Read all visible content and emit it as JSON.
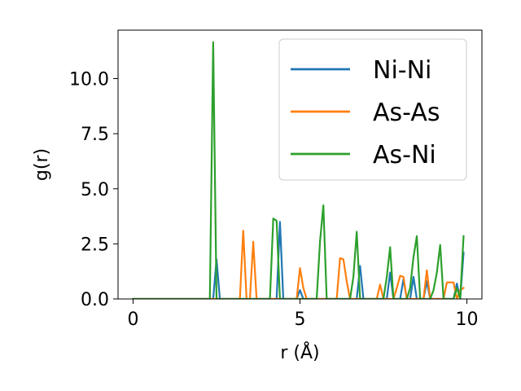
{
  "chart_data": {
    "type": "line",
    "xlabel": "r (Å)",
    "ylabel": "g(r)",
    "xlim": [
      -0.45,
      10.45
    ],
    "ylim": [
      0.0,
      12.2
    ],
    "xticks": [
      0,
      5,
      10
    ],
    "xtick_labels": [
      "0",
      "5",
      "10"
    ],
    "yticks": [
      0.0,
      2.5,
      5.0,
      7.5,
      10.0
    ],
    "ytick_labels": [
      "0.0",
      "2.5",
      "5.0",
      "7.5",
      "10.0"
    ],
    "grid": false,
    "legend_position": "top-right",
    "series": [
      {
        "name": "Ni-Ni",
        "color": "#1f77b4",
        "points": [
          [
            0.0,
            0
          ],
          [
            2.4,
            0
          ],
          [
            2.5,
            1.8
          ],
          [
            2.6,
            0
          ],
          [
            4.3,
            0
          ],
          [
            4.4,
            3.5
          ],
          [
            4.5,
            0
          ],
          [
            4.9,
            0
          ],
          [
            5.0,
            0.4
          ],
          [
            5.1,
            0
          ],
          [
            6.7,
            0
          ],
          [
            6.8,
            1.5
          ],
          [
            6.9,
            0
          ],
          [
            7.6,
            0
          ],
          [
            7.7,
            1.2
          ],
          [
            7.8,
            0
          ],
          [
            8.0,
            0
          ],
          [
            8.1,
            0.9
          ],
          [
            8.2,
            0
          ],
          [
            8.3,
            0
          ],
          [
            8.4,
            1.0
          ],
          [
            8.5,
            0
          ],
          [
            8.7,
            0
          ],
          [
            8.8,
            0.8
          ],
          [
            8.9,
            0
          ],
          [
            9.6,
            0
          ],
          [
            9.7,
            0.7
          ],
          [
            9.8,
            0
          ],
          [
            9.9,
            2.1
          ]
        ]
      },
      {
        "name": "As-As",
        "color": "#ff7f0e",
        "points": [
          [
            0.0,
            0
          ],
          [
            3.2,
            0
          ],
          [
            3.3,
            3.1
          ],
          [
            3.4,
            0
          ],
          [
            3.5,
            0
          ],
          [
            3.6,
            2.6
          ],
          [
            3.7,
            0
          ],
          [
            4.9,
            0
          ],
          [
            5.0,
            1.4
          ],
          [
            5.1,
            0.5
          ],
          [
            5.2,
            0
          ],
          [
            6.1,
            0
          ],
          [
            6.2,
            1.85
          ],
          [
            6.3,
            1.8
          ],
          [
            6.4,
            0.8
          ],
          [
            6.5,
            0
          ],
          [
            7.3,
            0
          ],
          [
            7.4,
            0.65
          ],
          [
            7.5,
            0
          ],
          [
            7.8,
            0
          ],
          [
            7.9,
            0.5
          ],
          [
            8.0,
            1.05
          ],
          [
            8.1,
            1.0
          ],
          [
            8.2,
            0
          ],
          [
            8.7,
            0
          ],
          [
            8.8,
            1.3
          ],
          [
            8.9,
            0
          ],
          [
            9.3,
            0
          ],
          [
            9.4,
            0.75
          ],
          [
            9.5,
            0.75
          ],
          [
            9.6,
            0.75
          ],
          [
            9.7,
            0
          ],
          [
            9.8,
            0.4
          ],
          [
            9.9,
            0.5
          ]
        ]
      },
      {
        "name": "As-Ni",
        "color": "#2ca02c",
        "points": [
          [
            0.0,
            0
          ],
          [
            2.3,
            0
          ],
          [
            2.4,
            11.65
          ],
          [
            2.5,
            0
          ],
          [
            4.1,
            0
          ],
          [
            4.2,
            3.65
          ],
          [
            4.3,
            3.55
          ],
          [
            4.4,
            0
          ],
          [
            5.5,
            0
          ],
          [
            5.6,
            2.6
          ],
          [
            5.7,
            4.25
          ],
          [
            5.8,
            0
          ],
          [
            6.5,
            0
          ],
          [
            6.6,
            1.0
          ],
          [
            6.7,
            3.05
          ],
          [
            6.8,
            0
          ],
          [
            7.5,
            0
          ],
          [
            7.6,
            1.0
          ],
          [
            7.7,
            2.35
          ],
          [
            7.8,
            0
          ],
          [
            8.2,
            0
          ],
          [
            8.3,
            0.5
          ],
          [
            8.4,
            1.9
          ],
          [
            8.5,
            2.85
          ],
          [
            8.6,
            0
          ],
          [
            8.9,
            0
          ],
          [
            9.0,
            0.4
          ],
          [
            9.1,
            1.2
          ],
          [
            9.2,
            2.45
          ],
          [
            9.3,
            0
          ],
          [
            9.6,
            0
          ],
          [
            9.7,
            0.5
          ],
          [
            9.8,
            0
          ],
          [
            9.9,
            2.85
          ]
        ]
      }
    ]
  }
}
